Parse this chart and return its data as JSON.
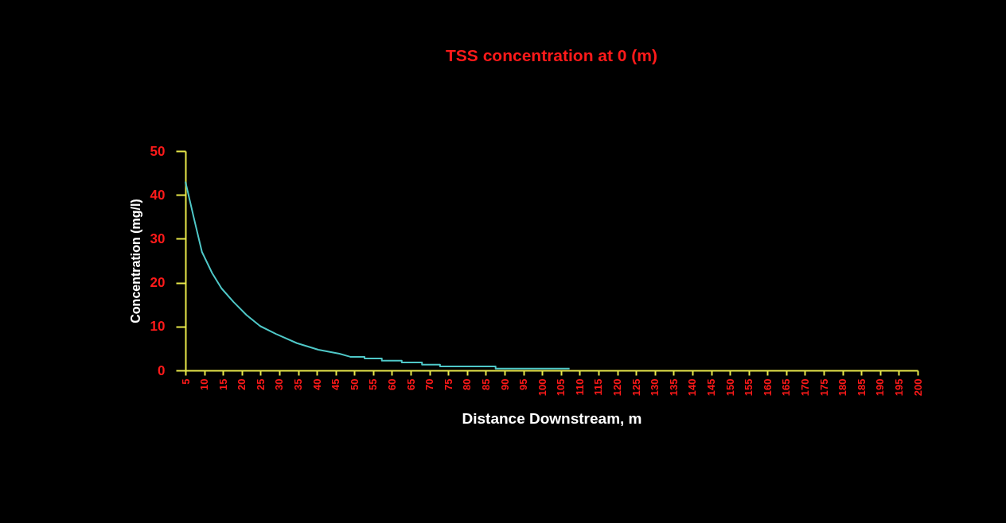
{
  "chart_data": {
    "type": "line",
    "title": "TSS concentration at 0 (m)",
    "xlabel": "Distance Downstream, m",
    "ylabel": "Concentration (mg/l)",
    "x": [
      5,
      7.2,
      9.4,
      12.1,
      14.6,
      17.8,
      21.3,
      24.9,
      29.1,
      34.7,
      40.4,
      46,
      48.9,
      52.7,
      52.7,
      57.3,
      57.3,
      62.6,
      62.6,
      68,
      68,
      72.8,
      72.8,
      87.6,
      87.6,
      107.3
    ],
    "series": [
      {
        "color": "#4fc8c8",
        "values": [
          43,
          34.9,
          27,
          22.2,
          18.7,
          15.6,
          12.6,
          10.1,
          8.3,
          6.2,
          4.7,
          3.8,
          3.1,
          3.1,
          2.7,
          2.7,
          2.2,
          2.2,
          1.8,
          1.8,
          1.3,
          1.3,
          0.9,
          0.9,
          0.4,
          0.4
        ]
      }
    ],
    "xlim": [
      5,
      200
    ],
    "xticks": [
      5,
      10,
      15,
      20,
      25,
      30,
      35,
      40,
      45,
      50,
      55,
      60,
      65,
      70,
      75,
      80,
      85,
      90,
      95,
      100,
      105,
      110,
      115,
      120,
      125,
      130,
      135,
      140,
      145,
      150,
      155,
      160,
      165,
      170,
      175,
      180,
      185,
      190,
      195,
      200
    ],
    "ylim": [
      0,
      50
    ],
    "yticks": [
      0,
      10,
      20,
      30,
      40,
      50
    ],
    "grid": false,
    "marker": "none",
    "line_style": "solid"
  }
}
